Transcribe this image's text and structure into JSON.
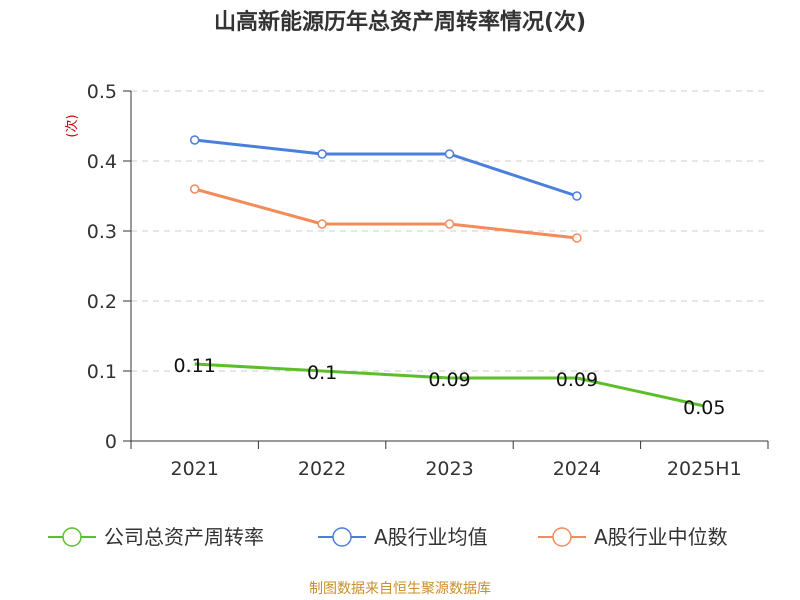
{
  "chart_data": {
    "type": "line",
    "title": "山高新能源历年总资产周转率情况(次)",
    "ylabel": "(次)",
    "xlabel": "",
    "categories": [
      "2021",
      "2022",
      "2023",
      "2024",
      "2025H1"
    ],
    "ylim": [
      0,
      0.5
    ],
    "yticks": [
      0,
      0.1,
      0.2,
      0.3,
      0.4,
      0.5
    ],
    "ytick_labels": [
      "0",
      "0.1",
      "0.2",
      "0.3",
      "0.4",
      "0.5"
    ],
    "grid": true,
    "legend_position": "bottom",
    "series": [
      {
        "name": "公司总资产周转率",
        "color": "#5cbf2a",
        "values": [
          0.11,
          0.1,
          0.09,
          0.09,
          0.05
        ],
        "data_labels": [
          "0.11",
          "0.1",
          "0.09",
          "0.09",
          "0.05"
        ],
        "show_markers": false
      },
      {
        "name": "A股行业均值",
        "color": "#4a7fdb",
        "values": [
          0.43,
          0.41,
          0.41,
          0.35,
          null
        ],
        "show_markers": true
      },
      {
        "name": "A股行业中位数",
        "color": "#f28c5a",
        "values": [
          0.36,
          0.31,
          0.31,
          0.29,
          null
        ],
        "show_markers": true
      }
    ],
    "source": "制图数据来自恒生聚源数据库"
  }
}
